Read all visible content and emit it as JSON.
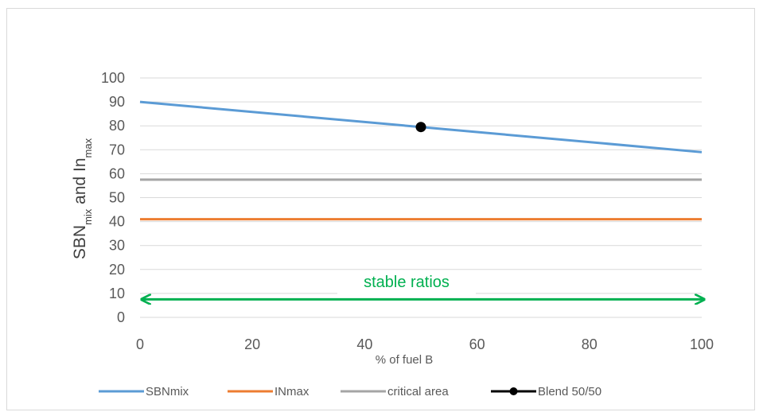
{
  "chart_data": {
    "type": "line",
    "xlabel": "% of fuel B",
    "ylabel_parts": [
      {
        "text": "SBN",
        "sub": false
      },
      {
        "text": "mix",
        "sub": true
      },
      {
        "text": " and In",
        "sub": false
      },
      {
        "text": "max",
        "sub": true
      }
    ],
    "xlim": [
      0,
      100
    ],
    "ylim": [
      0,
      100
    ],
    "x_ticks": [
      "0",
      "20",
      "40",
      "60",
      "80",
      "100"
    ],
    "y_ticks": [
      "0",
      "10",
      "20",
      "30",
      "40",
      "50",
      "60",
      "70",
      "80",
      "90",
      "100"
    ],
    "grid": "horizontal",
    "legend_position": "bottom",
    "series": [
      {
        "name": "SBNmix",
        "color": "#5b9bd5",
        "x": [
          0,
          100
        ],
        "y": [
          90,
          69
        ]
      },
      {
        "name": "INmax",
        "color": "#ed7d31",
        "x": [
          0,
          100
        ],
        "y": [
          41,
          41
        ]
      },
      {
        "name": "critical area",
        "color": "#a5a5a5",
        "x": [
          0,
          100
        ],
        "y": [
          57.5,
          57.5
        ]
      },
      {
        "name": "Blend 50/50",
        "color": "#000000",
        "x": [
          50
        ],
        "y": [
          79.5
        ],
        "marker": "circle"
      }
    ],
    "annotation": {
      "text": "stable ratios",
      "color": "#00b050",
      "arrow_from_x": 0,
      "arrow_to_x": 100,
      "arrow_y": 7.5
    }
  }
}
